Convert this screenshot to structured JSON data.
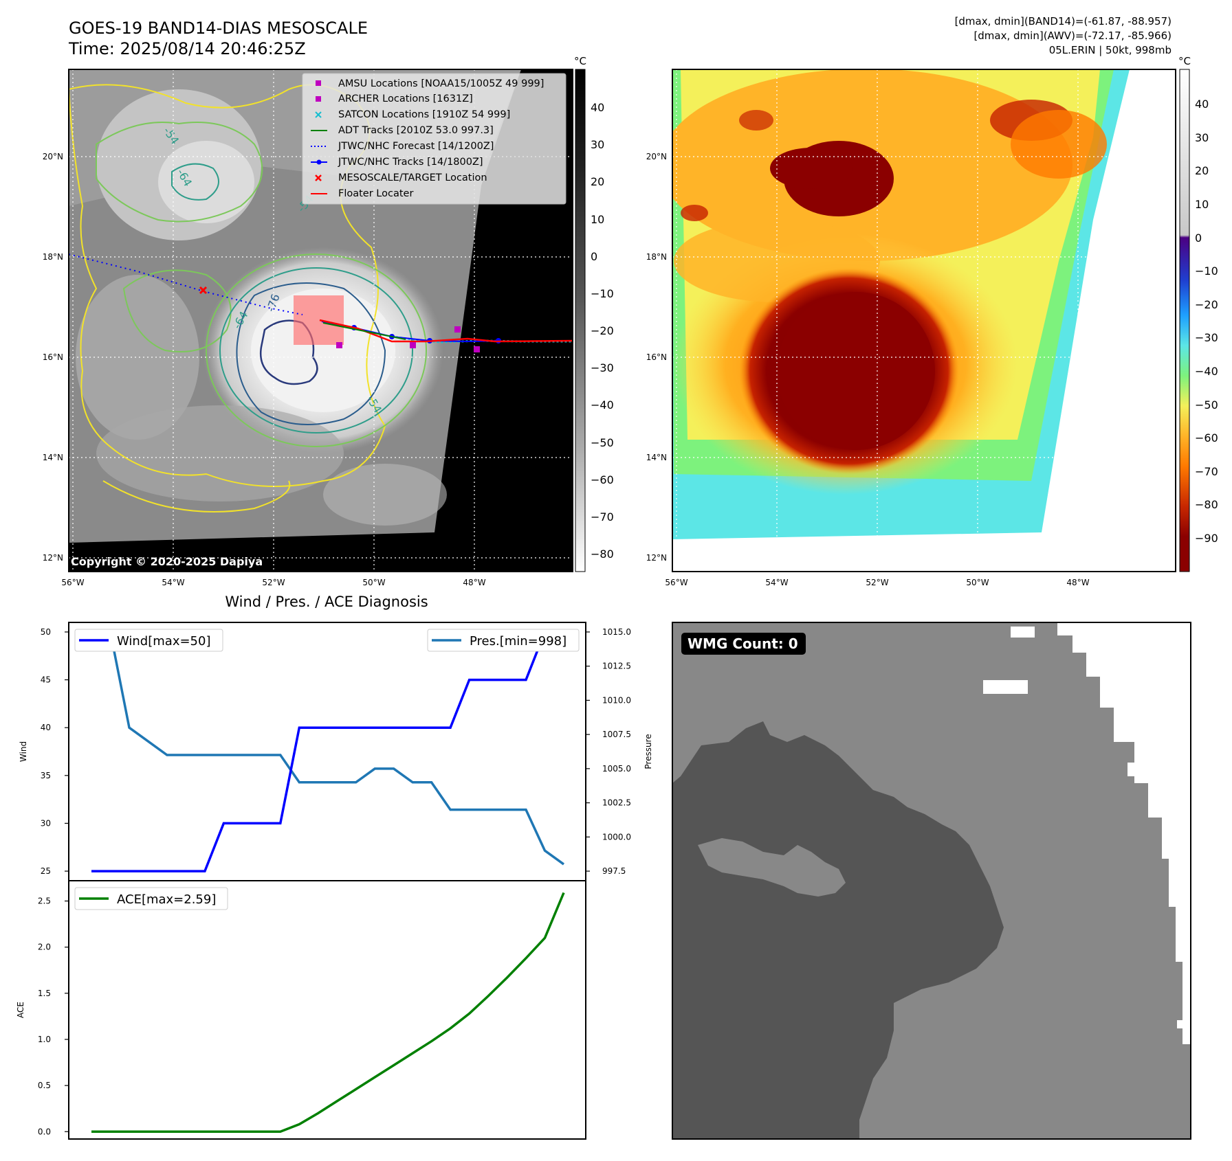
{
  "header": {
    "title_line1": "GOES-19 BAND14-DIAS MESOSCALE",
    "title_line2": "Time: 2025/08/14 20:46:25Z",
    "info_line1": "[dmax, dmin](BAND14)=(-61.87, -88.957)",
    "info_line2": "[dmax, dmin](AWV)=(-72.17, -85.966)",
    "info_line3": "05L.ERIN | 50kt, 998mb"
  },
  "map_panel_left": {
    "copyright": "Copyright © 2020-2025 Dapiya",
    "colorbar_unit": "°C",
    "colorbar_ticks": [
      "40",
      "30",
      "20",
      "10",
      "0",
      "−10",
      "−20",
      "−30",
      "−40",
      "−50",
      "−60",
      "−70",
      "−80"
    ],
    "lat_labels": [
      "20°N",
      "18°N",
      "16°N",
      "14°N",
      "12°N"
    ],
    "lon_labels": [
      "56°W",
      "54°W",
      "52°W",
      "50°W",
      "48°W"
    ],
    "contour_labels": [
      "-54",
      "-64",
      "-76",
      "-54",
      "-64",
      "-54"
    ],
    "legend": [
      {
        "label": "AMSU Locations [NOAA15/1005Z 49 999]",
        "color": "#bf00bf",
        "marker": "square"
      },
      {
        "label": "ARCHER Locations [1631Z]",
        "color": "#bf00bf",
        "marker": "square"
      },
      {
        "label": "SATCON Locations [1910Z 54 999]",
        "color": "#17becf",
        "marker": "x"
      },
      {
        "label": "ADT Tracks [2010Z 53.0 997.3]",
        "color": "#008000",
        "marker": "line"
      },
      {
        "label": "JTWC/NHC Forecast [14/1200Z]",
        "color": "#0000ff",
        "marker": "dotted"
      },
      {
        "label": "JTWC/NHC Tracks [14/1800Z]",
        "color": "#0000ff",
        "marker": "line-dot"
      },
      {
        "label": "MESOSCALE/TARGET Location",
        "color": "#ff0000",
        "marker": "x"
      },
      {
        "label": "Floater Locater",
        "color": "#ff0000",
        "marker": "line"
      }
    ]
  },
  "map_panel_right": {
    "colorbar_unit": "°C",
    "colorbar_ticks": [
      "40",
      "30",
      "20",
      "10",
      "0",
      "−10",
      "−20",
      "−30",
      "−40",
      "−50",
      "−60",
      "−70",
      "−80",
      "−90"
    ],
    "lat_labels": [
      "20°N",
      "18°N",
      "16°N",
      "14°N",
      "12°N"
    ],
    "lon_labels": [
      "56°W",
      "54°W",
      "52°W",
      "50°W",
      "48°W"
    ]
  },
  "diagnosis": {
    "title": "Wind / Pres. / ACE Diagnosis",
    "wind_ylabel": "Wind",
    "pres_ylabel": "Pressure",
    "ace_ylabel": "ACE",
    "wind_legend": "Wind[max=50]",
    "pres_legend": "Pres.[min=998]",
    "ace_legend": "ACE[max=2.59]"
  },
  "wmg_panel": {
    "label": "WMG Count: 0"
  },
  "colors": {
    "wind": "#0000ff",
    "pressure": "#1f77b4",
    "ace": "#008000"
  },
  "chart_data": [
    {
      "type": "line",
      "name": "wind",
      "x": [
        0,
        1,
        2,
        3,
        4,
        5,
        6,
        7,
        8,
        9,
        10,
        11,
        12,
        13,
        14,
        15,
        16,
        17,
        18,
        19,
        20,
        21,
        22,
        23,
        24,
        25
      ],
      "values": [
        25,
        25,
        25,
        25,
        25,
        25,
        25,
        30,
        30,
        30,
        30,
        40,
        40,
        40,
        40,
        40,
        40,
        40,
        40,
        40,
        45,
        45,
        45,
        45,
        50,
        50
      ],
      "ylim": [
        24,
        51
      ],
      "yticks": [
        25,
        30,
        35,
        40,
        45,
        50
      ]
    },
    {
      "type": "line",
      "name": "pressure",
      "x": [
        0,
        1,
        2,
        3,
        4,
        5,
        6,
        7,
        8,
        9,
        10,
        11,
        12,
        13,
        14,
        15,
        16,
        17,
        18,
        19,
        20,
        21,
        22,
        23,
        24,
        25
      ],
      "values": [
        1015,
        1015,
        1008,
        1007,
        1006,
        1006,
        1006,
        1006,
        1006,
        1006,
        1006,
        1004,
        1004,
        1004,
        1004,
        1005,
        1005,
        1004,
        1004,
        1002,
        1002,
        1002,
        1002,
        1002,
        999,
        998
      ],
      "ylim": [
        996.8,
        1015.7
      ],
      "yticks": [
        997.5,
        1000.0,
        1002.5,
        1005.0,
        1007.5,
        1010.0,
        1012.5,
        1015.0
      ]
    },
    {
      "type": "line",
      "name": "ace",
      "x": [
        0,
        1,
        2,
        3,
        4,
        5,
        6,
        7,
        8,
        9,
        10,
        11,
        12,
        13,
        14,
        15,
        16,
        17,
        18,
        19,
        20,
        21,
        22,
        23,
        24,
        25
      ],
      "values": [
        0,
        0,
        0,
        0,
        0,
        0,
        0,
        0,
        0,
        0,
        0,
        0.08,
        0.2,
        0.33,
        0.46,
        0.59,
        0.72,
        0.85,
        0.98,
        1.12,
        1.28,
        1.47,
        1.67,
        1.88,
        2.1,
        2.59
      ],
      "ylim": [
        -0.08,
        2.72
      ],
      "yticks": [
        0.0,
        0.5,
        1.0,
        1.5,
        2.0,
        2.5
      ]
    }
  ]
}
